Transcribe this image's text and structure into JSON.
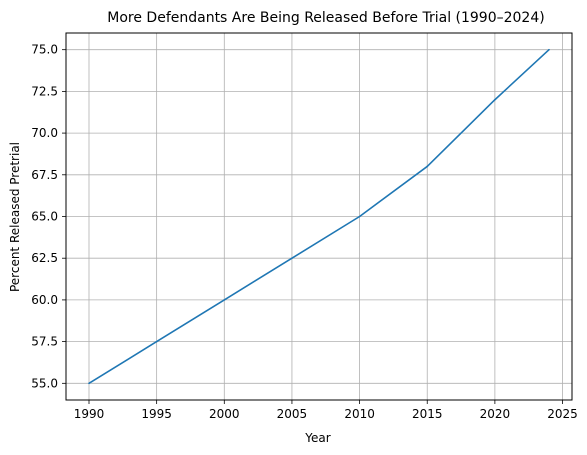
{
  "chart_data": {
    "type": "line",
    "title": "More Defendants Are Being Released Before Trial (1990–2024)",
    "xlabel": "Year",
    "ylabel": "Percent Released Pretrial",
    "xlim": [
      1988.3,
      2025.7
    ],
    "ylim": [
      54.0,
      76.0
    ],
    "x_ticks": [
      1990,
      1995,
      2000,
      2005,
      2010,
      2015,
      2020,
      2025
    ],
    "y_ticks": [
      55.0,
      57.5,
      60.0,
      62.5,
      65.0,
      67.5,
      70.0,
      72.5,
      75.0
    ],
    "x_tick_labels": [
      "1990",
      "1995",
      "2000",
      "2005",
      "2010",
      "2015",
      "2020",
      "2025"
    ],
    "y_tick_labels": [
      "55.0",
      "57.5",
      "60.0",
      "62.5",
      "65.0",
      "67.5",
      "70.0",
      "72.5",
      "75.0"
    ],
    "grid": true,
    "series": [
      {
        "color": "#1f77b4",
        "x": [
          1990,
          1995,
          2000,
          2005,
          2010,
          2015,
          2020,
          2024
        ],
        "y": [
          55.0,
          57.5,
          60.0,
          62.5,
          65.0,
          68.0,
          72.0,
          75.0
        ]
      }
    ]
  }
}
